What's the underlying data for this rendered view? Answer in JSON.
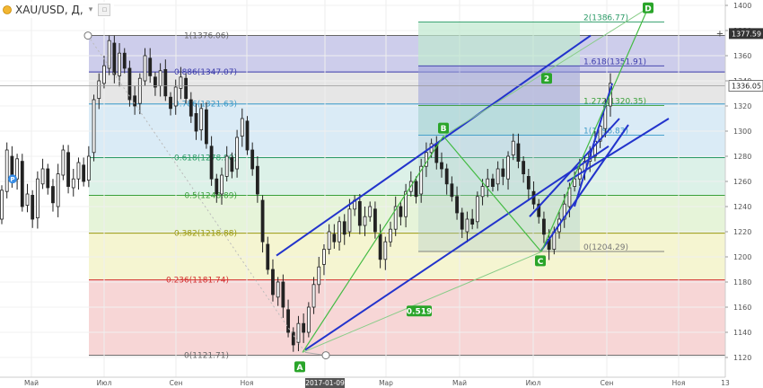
{
  "header": {
    "symbol": "XAU/USD, Д,",
    "caret_glyph": "▾",
    "box_glyph": "▫"
  },
  "axis": {
    "x_labels": [
      "Май",
      "Июл",
      "Сен",
      "Ноя",
      "2017-01-09",
      "Мар",
      "Май",
      "Июл",
      "Сен",
      "Ноя",
      "13"
    ],
    "y_ticks": [
      1120,
      1140,
      1160,
      1180,
      1200,
      1220,
      1240,
      1260,
      1280,
      1300,
      1320,
      1340,
      1360,
      1380,
      1400
    ]
  },
  "price_tags": {
    "fib_top": "1377.59",
    "current": "1336.05"
  },
  "fib": {
    "levels": [
      {
        "ratio": "0",
        "text": "0(1121.71)",
        "price": 1121.71,
        "color": "#666666",
        "fill": "#ffffff"
      },
      {
        "ratio": "0.236",
        "text": "0.236(1181.74)",
        "price": 1181.74,
        "color": "#d32f2f",
        "fill": "#f6cfcf"
      },
      {
        "ratio": "0.382",
        "text": "0.382(1218.88)",
        "price": 1218.88,
        "color": "#9a9a10",
        "fill": "#f3f3c9"
      },
      {
        "ratio": "0.5",
        "text": "0.5(1248.89)",
        "price": 1248.89,
        "color": "#3aa03a",
        "fill": "#e2f2d2"
      },
      {
        "ratio": "0.618",
        "text": "0.618(1278.90)",
        "price": 1278.9,
        "color": "#2a9a66",
        "fill": "#d6efe4"
      },
      {
        "ratio": "0.786",
        "text": "0.786(1321.63)",
        "price": 1321.63,
        "color": "#3c9ac8",
        "fill": "#d4e8f4"
      },
      {
        "ratio": "0.886",
        "text": "0.886(1347.07)",
        "price": 1347.07,
        "color": "#3a3aaa",
        "fill": "#e2e2e2"
      },
      {
        "ratio": "1",
        "text": "1(1376.06)",
        "price": 1376.06,
        "color": "#666666",
        "fill": "#c4c4e8"
      }
    ]
  },
  "fib_ext": {
    "levels": [
      {
        "text": "0(1204.29)",
        "price": 1204.29,
        "color": "#777777"
      },
      {
        "text": "1(1296.83)",
        "price": 1296.83,
        "color": "#3c9ac8"
      },
      {
        "text": "1.272(1320.35)",
        "price": 1320.35,
        "color": "#3aa03a"
      },
      {
        "text": "1.618(1351.91)",
        "price": 1351.91,
        "color": "#3a3aaa"
      },
      {
        "text": "2(1386.77)",
        "price": 1386.77,
        "color": "#2a9a66"
      }
    ]
  },
  "pattern": {
    "points": [
      {
        "label": "A",
        "price": 1124
      },
      {
        "label": "B",
        "price": 1296
      },
      {
        "label": "C",
        "price": 1204
      },
      {
        "label": "D",
        "price": 1398
      }
    ],
    "ratio_badges": [
      "2",
      "0.519"
    ],
    "marker_p": "P"
  },
  "chart_data": {
    "type": "candlestick",
    "title": "XAU/USD, Д,",
    "xlabel": "",
    "ylabel": "",
    "ylim": [
      1110,
      1405
    ],
    "x": [
      "Май",
      "Июл",
      "Сен",
      "Ноя",
      "2017-01-09",
      "Мар",
      "Май",
      "Июл",
      "Сен",
      "Ноя",
      "13"
    ],
    "series": [
      {
        "values": [
          [
            1230,
            1253
          ],
          [
            1252,
            1285
          ],
          [
            1280,
            1262
          ],
          [
            1262,
            1278
          ],
          [
            1276,
            1240
          ],
          [
            1241,
            1250
          ],
          [
            1249,
            1230
          ],
          [
            1231,
            1262
          ],
          [
            1258,
            1270
          ],
          [
            1270,
            1255
          ],
          [
            1256,
            1243
          ],
          [
            1240,
            1266
          ],
          [
            1265,
            1285
          ],
          [
            1283,
            1256
          ],
          [
            1255,
            1262
          ],
          [
            1262,
            1275
          ],
          [
            1273,
            1260
          ],
          [
            1261,
            1280
          ],
          [
            1283,
            1325
          ],
          [
            1326,
            1340
          ],
          [
            1338,
            1352
          ],
          [
            1350,
            1372
          ],
          [
            1370,
            1345
          ],
          [
            1344,
            1362
          ],
          [
            1362,
            1350
          ],
          [
            1350,
            1325
          ],
          [
            1328,
            1320
          ],
          [
            1322,
            1342
          ],
          [
            1340,
            1360
          ],
          [
            1358,
            1344
          ],
          [
            1343,
            1335
          ],
          [
            1336,
            1348
          ],
          [
            1349,
            1328
          ],
          [
            1327,
            1318
          ],
          [
            1320,
            1335
          ],
          [
            1334,
            1343
          ],
          [
            1342,
            1326
          ],
          [
            1325,
            1312
          ],
          [
            1314,
            1300
          ],
          [
            1301,
            1318
          ],
          [
            1317,
            1290
          ],
          [
            1288,
            1262
          ],
          [
            1262,
            1250
          ],
          [
            1250,
            1265
          ],
          [
            1264,
            1280
          ],
          [
            1279,
            1268
          ],
          [
            1270,
            1295
          ],
          [
            1296,
            1310
          ],
          [
            1308,
            1285
          ],
          [
            1285,
            1270
          ],
          [
            1272,
            1250
          ],
          [
            1245,
            1212
          ],
          [
            1210,
            1190
          ],
          [
            1190,
            1170
          ],
          [
            1168,
            1180
          ],
          [
            1180,
            1160
          ],
          [
            1158,
            1140
          ],
          [
            1140,
            1130
          ],
          [
            1132,
            1147
          ],
          [
            1147,
            1140
          ],
          [
            1140,
            1160
          ],
          [
            1160,
            1178
          ],
          [
            1178,
            1192
          ],
          [
            1194,
            1206
          ],
          [
            1206,
            1220
          ],
          [
            1218,
            1212
          ],
          [
            1212,
            1228
          ],
          [
            1228,
            1218
          ],
          [
            1220,
            1238
          ],
          [
            1238,
            1245
          ],
          [
            1244,
            1225
          ],
          [
            1225,
            1232
          ],
          [
            1232,
            1240
          ],
          [
            1238,
            1220
          ],
          [
            1218,
            1198
          ],
          [
            1198,
            1212
          ],
          [
            1212,
            1222
          ],
          [
            1222,
            1240
          ],
          [
            1240,
            1232
          ],
          [
            1232,
            1252
          ],
          [
            1252,
            1260
          ],
          [
            1260,
            1248
          ],
          [
            1250,
            1272
          ],
          [
            1272,
            1283
          ],
          [
            1283,
            1290
          ],
          [
            1290,
            1275
          ],
          [
            1275,
            1270
          ],
          [
            1270,
            1258
          ],
          [
            1258,
            1248
          ],
          [
            1248,
            1235
          ],
          [
            1235,
            1222
          ],
          [
            1220,
            1230
          ],
          [
            1230,
            1226
          ],
          [
            1228,
            1248
          ],
          [
            1248,
            1256
          ],
          [
            1256,
            1262
          ],
          [
            1262,
            1256
          ],
          [
            1258,
            1270
          ],
          [
            1270,
            1264
          ],
          [
            1262,
            1280
          ],
          [
            1281,
            1292
          ],
          [
            1290,
            1276
          ],
          [
            1276,
            1266
          ],
          [
            1264,
            1254
          ],
          [
            1252,
            1242
          ],
          [
            1242,
            1232
          ],
          [
            1230,
            1218
          ],
          [
            1214,
            1206
          ],
          [
            1206,
            1220
          ],
          [
            1220,
            1230
          ],
          [
            1230,
            1242
          ],
          [
            1240,
            1255
          ],
          [
            1256,
            1262
          ],
          [
            1262,
            1270
          ],
          [
            1268,
            1276
          ],
          [
            1276,
            1282
          ],
          [
            1280,
            1292
          ],
          [
            1292,
            1304
          ],
          [
            1302,
            1320
          ],
          [
            1320,
            1338
          ]
        ]
      }
    ]
  }
}
